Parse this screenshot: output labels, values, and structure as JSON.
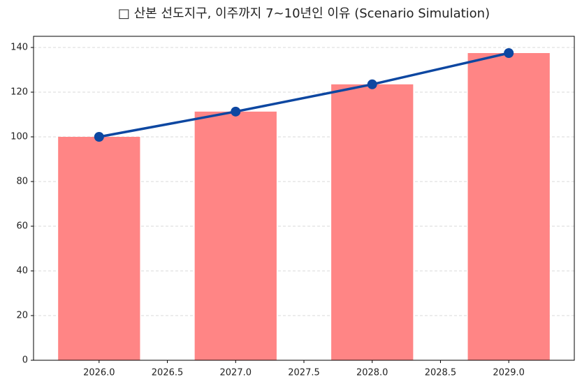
{
  "chart_data": {
    "type": "bar",
    "title": "□ 산본 선도지구, 이주까지 7~10년인 이유 (Scenario Simulation)",
    "x": [
      2026,
      2027,
      2028,
      2029
    ],
    "series": [
      {
        "type": "bar",
        "color": "#ff8585",
        "values": [
          100,
          111.3,
          123.5,
          137.5
        ]
      },
      {
        "type": "line",
        "color": "#0d47a1",
        "values": [
          100,
          111.3,
          123.5,
          137.5
        ]
      }
    ],
    "xlim": [
      2025.52,
      2029.48
    ],
    "xticks": [
      {
        "value": 2026,
        "label": "2026.0"
      },
      {
        "value": 2026.5,
        "label": "2026.5"
      },
      {
        "value": 2027,
        "label": "2027.0"
      },
      {
        "value": 2027.5,
        "label": "2027.5"
      },
      {
        "value": 2028,
        "label": "2028.0"
      },
      {
        "value": 2028.5,
        "label": "2028.5"
      },
      {
        "value": 2029,
        "label": "2029.0"
      }
    ],
    "ylim": [
      0,
      145
    ],
    "yticks": [
      0,
      20,
      40,
      60,
      80,
      100,
      120,
      140
    ],
    "grid": true
  }
}
